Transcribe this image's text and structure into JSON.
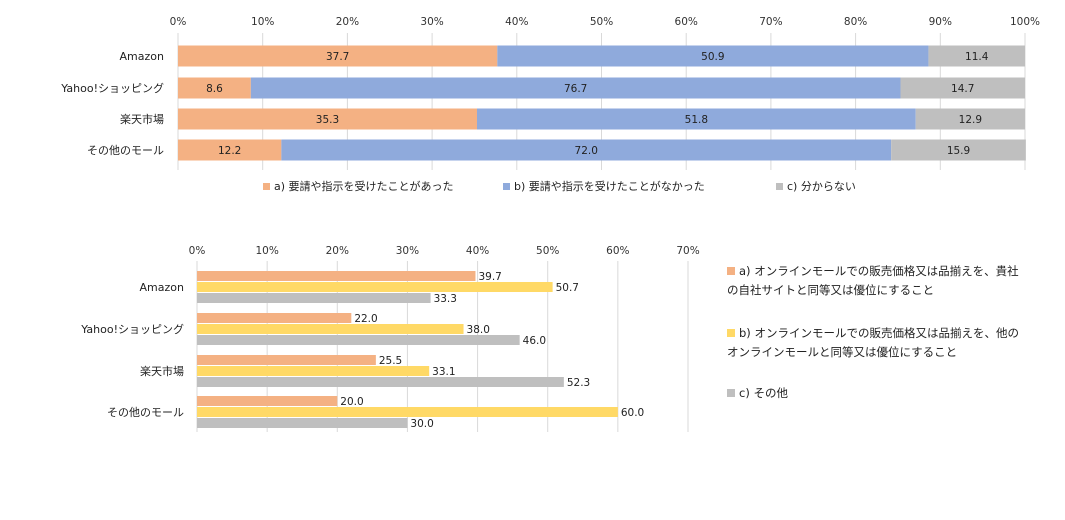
{
  "chart_data": [
    {
      "type": "bar",
      "stacked": true,
      "orientation": "horizontal",
      "categories": [
        "Amazon",
        "Yahoo!ショッピング",
        "楽天市場",
        "その他のモール"
      ],
      "series": [
        {
          "name": "a) 要請や指示を受けたことがあった",
          "color": "#F4B183",
          "values": [
            37.7,
            8.6,
            35.3,
            12.2
          ]
        },
        {
          "name": "b) 要請や指示を受けたことがなかった",
          "color": "#8FAADC",
          "values": [
            50.9,
            76.7,
            51.8,
            72.0
          ]
        },
        {
          "name": "c) 分からない",
          "color": "#BFBFBF",
          "values": [
            11.4,
            14.7,
            12.9,
            15.9
          ]
        }
      ],
      "xlim": [
        0,
        100
      ],
      "xticks": [
        "0%",
        "10%",
        "20%",
        "30%",
        "40%",
        "50%",
        "60%",
        "70%",
        "80%",
        "90%",
        "100%"
      ],
      "grid": true,
      "legend": "bottom"
    },
    {
      "type": "bar",
      "stacked": false,
      "orientation": "horizontal",
      "categories": [
        "Amazon",
        "Yahoo!ショッピング",
        "楽天市場",
        "その他のモール"
      ],
      "series": [
        {
          "name": "a) オンラインモールでの販売価格又は品揃えを、貴社の自社サイトと同等又は優位にすること",
          "lines": [
            "a) オンラインモールでの販売価格又は品揃えを、貴社",
            "の自社サイトと同等又は優位にすること"
          ],
          "color": "#F4B183",
          "values": [
            39.7,
            22.0,
            25.5,
            20.0
          ]
        },
        {
          "name": "b) オンラインモールでの販売価格又は品揃えを、他のオンラインモールと同等又は優位にすること",
          "lines": [
            "b) オンラインモールでの販売価格又は品揃えを、他の",
            "オンラインモールと同等又は優位にすること"
          ],
          "color": "#FFD966",
          "values": [
            50.7,
            38.0,
            33.1,
            60.0
          ]
        },
        {
          "name": "c) その他",
          "lines": [
            "c) その他"
          ],
          "color": "#BFBFBF",
          "values": [
            33.3,
            46.0,
            52.3,
            30.0
          ]
        }
      ],
      "xlim": [
        0,
        70
      ],
      "xticks": [
        "0%",
        "10%",
        "20%",
        "30%",
        "40%",
        "50%",
        "60%",
        "70%"
      ],
      "grid": true,
      "legend": "right"
    }
  ]
}
